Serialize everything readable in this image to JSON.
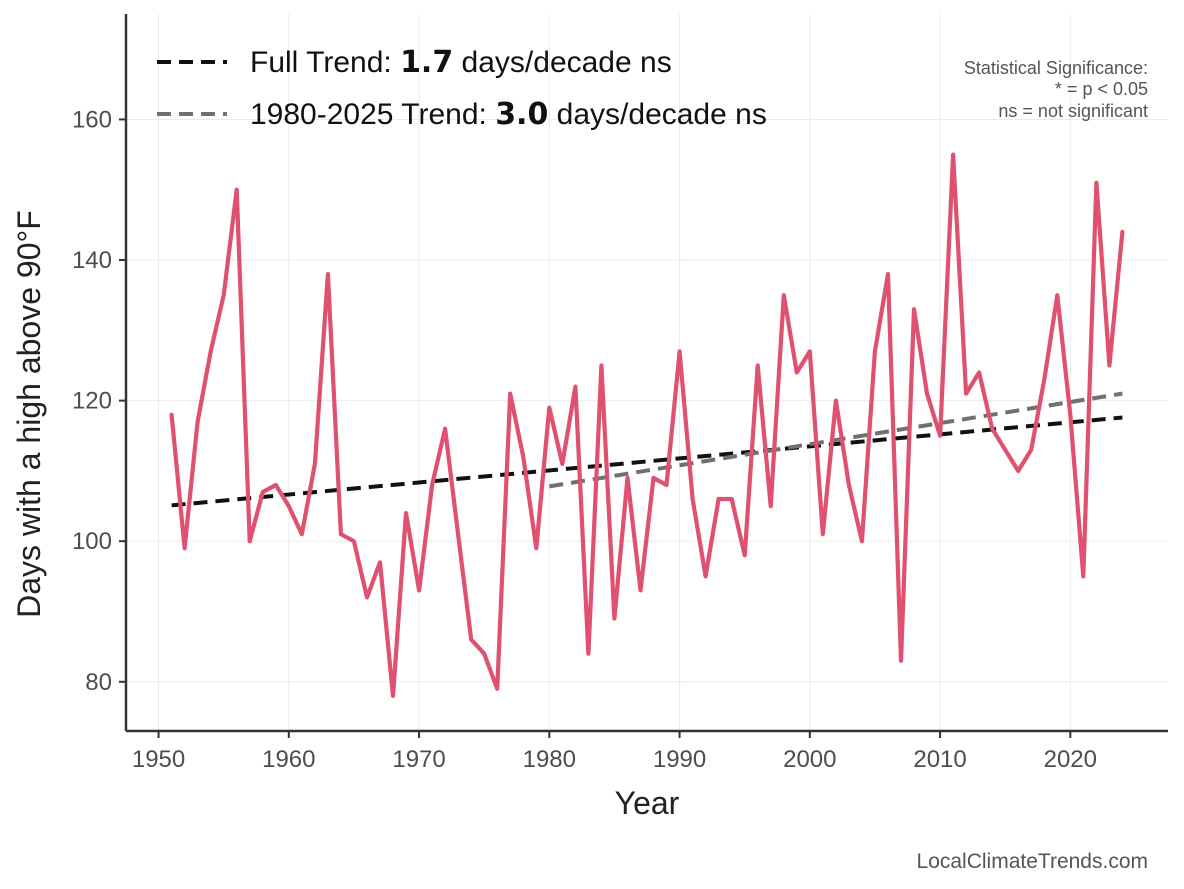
{
  "chart_data": {
    "type": "line",
    "xlabel": "Year",
    "ylabel": "Days with a high above 90°F",
    "xlim": [
      1947.5,
      2027.5
    ],
    "ylim": [
      73,
      175
    ],
    "xticks": [
      1950,
      1960,
      1970,
      1980,
      1990,
      2000,
      2010,
      2020
    ],
    "yticks": [
      80,
      100,
      120,
      140,
      160
    ],
    "grid": true,
    "legend_position": "top-left",
    "series": [
      {
        "color": "#e0506f",
        "x": [
          1951,
          1952,
          1953,
          1954,
          1955,
          1956,
          1957,
          1958,
          1959,
          1960,
          1961,
          1962,
          1963,
          1964,
          1965,
          1966,
          1967,
          1968,
          1969,
          1970,
          1971,
          1972,
          1973,
          1974,
          1975,
          1976,
          1977,
          1978,
          1979,
          1980,
          1981,
          1982,
          1983,
          1984,
          1985,
          1986,
          1987,
          1988,
          1989,
          1990,
          1991,
          1992,
          1993,
          1994,
          1995,
          1996,
          1997,
          1998,
          1999,
          2000,
          2001,
          2002,
          2003,
          2004,
          2005,
          2006,
          2007,
          2008,
          2009,
          2010,
          2011,
          2012,
          2013,
          2014,
          2015,
          2016,
          2017,
          2018,
          2019,
          2020,
          2021,
          2022,
          2023,
          2024
        ],
        "values": [
          118,
          99,
          117,
          127,
          135,
          150,
          100,
          107,
          108,
          105,
          101,
          111,
          138,
          101,
          100,
          92,
          97,
          78,
          104,
          93,
          108,
          116,
          101,
          86,
          84,
          79,
          121,
          112,
          99,
          119,
          111,
          122,
          84,
          125,
          89,
          109,
          93,
          109,
          108,
          127,
          106,
          95,
          106,
          106,
          98,
          125,
          105,
          135,
          124,
          127,
          101,
          120,
          108,
          100,
          127,
          138,
          83,
          133,
          121,
          115,
          155,
          121,
          124,
          116,
          113,
          110,
          113,
          123,
          135,
          118,
          95,
          151,
          125,
          144
        ]
      }
    ],
    "trends": [
      {
        "name_prefix": "Full Trend: ",
        "slope_label": "1.7",
        "name_suffix": " days/decade ns",
        "color": "#111111",
        "x": [
          1951,
          2024
        ],
        "values": [
          105.1,
          117.6
        ]
      },
      {
        "name_prefix": "1980-2025 Trend: ",
        "slope_label": "3.0",
        "name_suffix": " days/decade ns",
        "color": "#707070",
        "x": [
          1980,
          2024
        ],
        "values": [
          107.8,
          121.0
        ]
      }
    ],
    "annotation": {
      "line1": "Statistical Significance:",
      "line2": "* = p < 0.05",
      "line3": "ns = not significant"
    },
    "source": "LocalClimateTrends.com"
  }
}
